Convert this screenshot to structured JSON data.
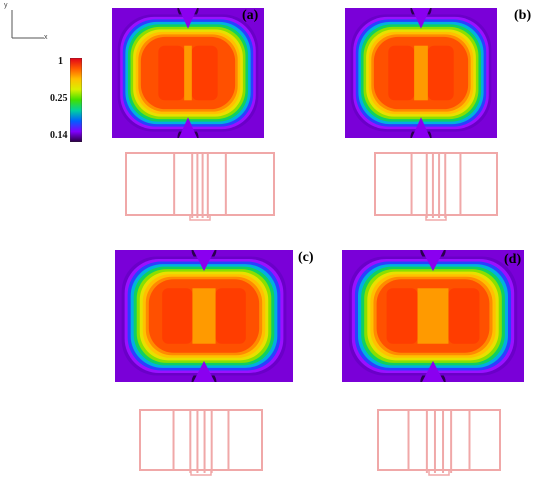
{
  "axes": {
    "x_label": "x",
    "y_label": "y"
  },
  "colorbar": {
    "ticks": [
      {
        "label": "1",
        "value": 1
      },
      {
        "label": "0.25",
        "value": 0.25
      },
      {
        "label": "0.14",
        "value": 0.14
      }
    ],
    "colors": [
      "#e0001a",
      "#ff5a00",
      "#ffc000",
      "#d9f000",
      "#40e000",
      "#00d0a0",
      "#0060ff",
      "#8000ff",
      "#2a0040"
    ]
  },
  "panels": [
    {
      "id": "a",
      "label": "(a)",
      "center_gap": "narrow"
    },
    {
      "id": "b",
      "label": "(b)",
      "center_gap": "medium"
    },
    {
      "id": "c",
      "label": "(c)",
      "center_gap": "wide"
    },
    {
      "id": "d",
      "label": "(d)",
      "center_gap": "widest"
    }
  ],
  "layout_color": "#f0a8a8"
}
